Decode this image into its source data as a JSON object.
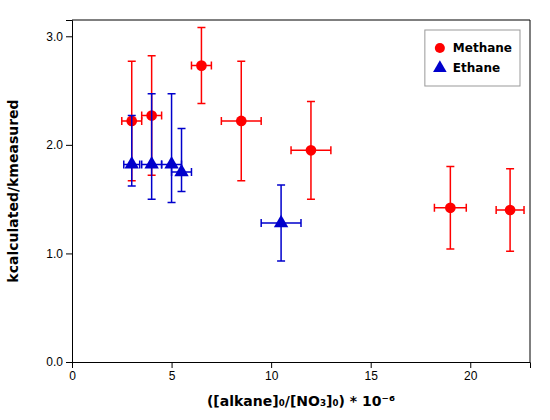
{
  "chart_data": {
    "type": "scatter",
    "xlabel": "([alkane]₀/[NO₃]₀) * 10⁻⁶",
    "ylabel": "kcalculated/kmeasured",
    "xlim": [
      0,
      23
    ],
    "ylim": [
      0.0,
      3.15
    ],
    "xticks": [
      0,
      5,
      10,
      15,
      20
    ],
    "yticks": [
      {
        "value": 0.0,
        "label": "0.0"
      },
      {
        "value": 1.0,
        "label": "1.0"
      },
      {
        "value": 2.0,
        "label": "2.0"
      },
      {
        "value": 3.0,
        "label": "3.0"
      }
    ],
    "grid": false,
    "legend": "upper right",
    "series": [
      {
        "name": "Methane",
        "color": "#ff0000",
        "marker": "circle",
        "x": [
          3.0,
          4.0,
          6.5,
          8.5,
          12.0,
          19.0,
          22.0
        ],
        "values": [
          2.22,
          2.27,
          2.73,
          2.22,
          1.95,
          1.42,
          1.4
        ],
        "xerr_lo": [
          0.5,
          0.5,
          0.5,
          1.0,
          1.0,
          0.8,
          0.7
        ],
        "xerr_hi": [
          0.5,
          0.5,
          0.5,
          1.0,
          1.0,
          0.8,
          0.7
        ],
        "yerr_lo": [
          0.55,
          0.55,
          0.35,
          0.55,
          0.45,
          0.38,
          0.38
        ],
        "yerr_hi": [
          0.55,
          0.55,
          0.35,
          0.55,
          0.45,
          0.38,
          0.38
        ]
      },
      {
        "name": "Ethane",
        "color": "#0000cc",
        "marker": "triangle",
        "x": [
          3.0,
          4.0,
          5.0,
          5.5,
          10.5
        ],
        "values": [
          1.82,
          1.82,
          1.82,
          1.75,
          1.28
        ],
        "xerr_lo": [
          0.4,
          0.5,
          0.5,
          0.5,
          1.0
        ],
        "xerr_hi": [
          0.4,
          0.5,
          0.5,
          0.5,
          1.0
        ],
        "yerr_lo": [
          0.2,
          0.32,
          0.35,
          0.18,
          0.35
        ],
        "yerr_hi": [
          0.45,
          0.65,
          0.65,
          0.4,
          0.35
        ]
      }
    ]
  }
}
